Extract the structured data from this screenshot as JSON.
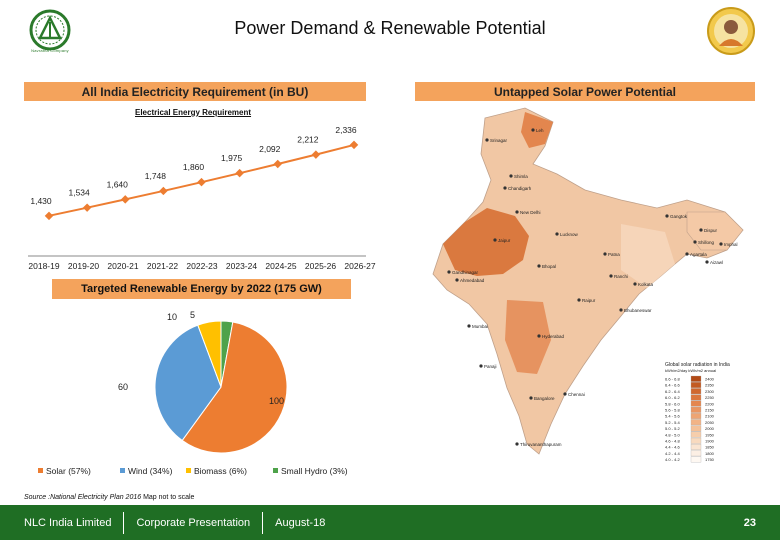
{
  "header": {
    "title": "Power Demand & Renewable Potential",
    "logo_left_text": "Navratna Company"
  },
  "left_header": "All India Electricity Requirement (in BU)",
  "right_header": "Untapped Solar Power Potential",
  "targeted_header": "Targeted Renewable Energy by 2022 (175 GW)",
  "source": "Source :National Electricity Plan 2016",
  "map_note": "Map not to scale",
  "colors": {
    "accent_orange": "#f4a35c",
    "footer_green": "#1f6e24",
    "line_orange": "#ed7d31",
    "wind_blue": "#5b9bd5",
    "biomass_yellow": "#ffc000",
    "hydro_green": "#4ea24a"
  },
  "chart_data": [
    {
      "type": "line",
      "title": "Electrical Energy Requirement",
      "categories": [
        "2018-19",
        "2019-20",
        "2020-21",
        "2021-22",
        "2022-23",
        "2023-24",
        "2024-25",
        "2025-26",
        "2026-27"
      ],
      "values": [
        1430,
        1534,
        1640,
        1748,
        1860,
        1975,
        2092,
        2212,
        2336
      ],
      "value_labels": [
        "1,430",
        "1,534",
        "1,640",
        "1,748",
        "1,860",
        "1,975",
        "2,092",
        "2,212",
        "2,336"
      ],
      "ylim": [
        1300,
        2450
      ],
      "color": "#ed7d31"
    },
    {
      "type": "pie",
      "slices": [
        {
          "label": "Solar (57%)",
          "value": 100,
          "value_label": "100",
          "color": "#ed7d31"
        },
        {
          "label": "Wind (34%)",
          "value": 60,
          "value_label": "60",
          "color": "#5b9bd5"
        },
        {
          "label": "Biomass (6%)",
          "value": 10,
          "value_label": "10",
          "color": "#ffc000"
        },
        {
          "label": "Small Hydro (3%)",
          "value": 5,
          "value_label": "5",
          "color": "#4ea24a"
        }
      ]
    }
  ],
  "map": {
    "legend_title": "Global solar radiation in India",
    "legend_sub": "kWh/m2/day  kWh/m2 annual",
    "legend_rows": [
      {
        "range": "6.6 - 6.8",
        "annual": "2400",
        "color": "#b24a16"
      },
      {
        "range": "6.4 - 6.6",
        "annual": "2350",
        "color": "#c35a22"
      },
      {
        "range": "6.2 - 6.4",
        "annual": "2300",
        "color": "#d0682f"
      },
      {
        "range": "6.0 - 6.2",
        "annual": "2250",
        "color": "#db773e"
      },
      {
        "range": "5.8 - 6.0",
        "annual": "2200",
        "color": "#e4864f"
      },
      {
        "range": "5.6 - 5.8",
        "annual": "2150",
        "color": "#ea9561"
      },
      {
        "range": "5.4 - 5.6",
        "annual": "2100",
        "color": "#eea473"
      },
      {
        "range": "5.2 - 5.4",
        "annual": "2050",
        "color": "#f2b386"
      },
      {
        "range": "5.0 - 5.2",
        "annual": "2000",
        "color": "#f4c199"
      },
      {
        "range": "4.8 - 5.0",
        "annual": "1950",
        "color": "#f6ceac"
      },
      {
        "range": "4.6 - 4.8",
        "annual": "1900",
        "color": "#f8dabf"
      },
      {
        "range": "4.4 - 4.6",
        "annual": "1850",
        "color": "#fae5d2"
      },
      {
        "range": "4.2 - 4.4",
        "annual": "1800",
        "color": "#fcefe4"
      },
      {
        "range": "4.0 - 4.2",
        "annual": "1750",
        "color": "#fef8f2"
      }
    ],
    "cities": [
      "Srinagar",
      "Leh",
      "Shimla",
      "Chandigarh",
      "New Delhi",
      "Jaipur",
      "Lucknow",
      "Patna",
      "Gangtok",
      "Dispur",
      "Shillong",
      "Imphal",
      "Aizawl",
      "Agartala",
      "Kolkata",
      "Ranchi",
      "Bhopal",
      "Ahmedabad",
      "Gandhinagar",
      "Bhubaneswar",
      "Raipur",
      "Mumbai",
      "Hyderabad",
      "Chennai",
      "Bangalore",
      "Thiruvananthapuram",
      "Panaji"
    ]
  },
  "footer": {
    "company": "NLC India Limited",
    "doc": "Corporate Presentation",
    "date": "August-18",
    "page": "23"
  }
}
